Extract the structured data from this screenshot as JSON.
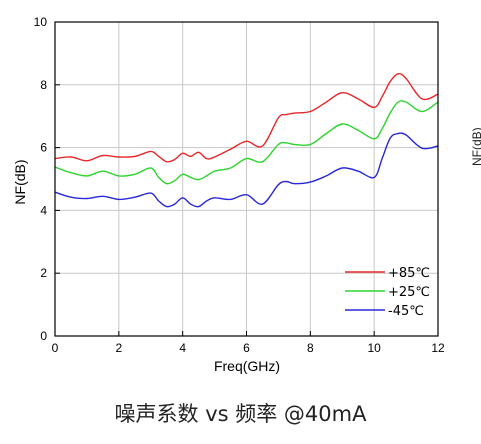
{
  "caption": "噪声系数 vs 频率 @40mA",
  "edge_label": "NF(dB)",
  "chart_data": {
    "type": "line",
    "xlabel": "Freq(GHz)",
    "ylabel": "NF(dB)",
    "xlim": [
      0,
      12
    ],
    "ylim": [
      0,
      10
    ],
    "xticks": [
      "0",
      "2",
      "4",
      "6",
      "8",
      "10",
      "12"
    ],
    "yticks": [
      "0",
      "2",
      "4",
      "6",
      "8",
      "10"
    ],
    "grid": true,
    "legend_position": "bottom-right",
    "x": [
      0,
      0.5,
      1,
      1.5,
      2,
      2.5,
      3,
      3.25,
      3.5,
      3.75,
      4,
      4.25,
      4.5,
      4.75,
      5,
      5.5,
      6,
      6.5,
      7,
      7.25,
      7.5,
      8,
      8.5,
      9,
      9.5,
      10,
      10.25,
      10.5,
      10.75,
      11,
      11.5,
      12
    ],
    "series": [
      {
        "name": "+85℃",
        "color": "#e8282b",
        "values": [
          5.65,
          5.7,
          5.58,
          5.75,
          5.7,
          5.72,
          5.88,
          5.72,
          5.55,
          5.62,
          5.82,
          5.72,
          5.85,
          5.65,
          5.7,
          5.95,
          6.2,
          6.05,
          6.95,
          7.05,
          7.1,
          7.15,
          7.45,
          7.75,
          7.55,
          7.28,
          7.62,
          8.1,
          8.35,
          8.2,
          7.55,
          7.7
        ]
      },
      {
        "name": "+25℃",
        "color": "#2ed42e",
        "values": [
          5.38,
          5.2,
          5.1,
          5.25,
          5.1,
          5.15,
          5.35,
          5.05,
          4.85,
          4.95,
          5.15,
          5.05,
          4.98,
          5.1,
          5.25,
          5.35,
          5.65,
          5.55,
          6.1,
          6.15,
          6.1,
          6.1,
          6.45,
          6.75,
          6.55,
          6.28,
          6.6,
          7.1,
          7.45,
          7.45,
          7.15,
          7.45
        ]
      },
      {
        "name": "-45℃",
        "color": "#2828d8",
        "values": [
          4.58,
          4.42,
          4.38,
          4.45,
          4.35,
          4.42,
          4.55,
          4.3,
          4.12,
          4.2,
          4.4,
          4.2,
          4.12,
          4.3,
          4.4,
          4.35,
          4.5,
          4.2,
          4.82,
          4.92,
          4.85,
          4.9,
          5.1,
          5.35,
          5.25,
          5.05,
          5.65,
          6.3,
          6.45,
          6.4,
          5.98,
          6.05
        ]
      }
    ]
  }
}
